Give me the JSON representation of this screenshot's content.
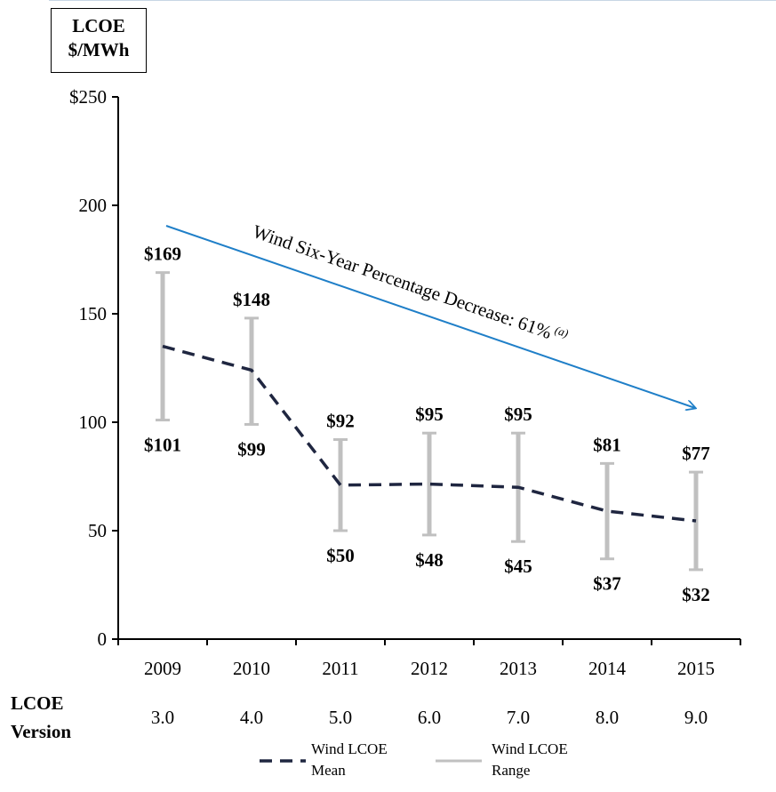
{
  "chart_data": {
    "type": "line",
    "ylabel_lines": [
      "LCOE",
      "$/MWh"
    ],
    "categories": [
      "2009",
      "2010",
      "2011",
      "2012",
      "2013",
      "2014",
      "2015"
    ],
    "ylim": [
      0,
      250
    ],
    "yticks": [
      "0",
      "50",
      "100",
      "150",
      "200",
      "$250"
    ],
    "yticks_values": [
      0,
      50,
      100,
      150,
      200,
      250
    ],
    "series": [
      {
        "name": "Wind LCOE Mean",
        "style": "dashed",
        "color": "#1f2640",
        "values": [
          135,
          124,
          71,
          71.5,
          70,
          59,
          54.5
        ]
      }
    ],
    "range": {
      "name": "Wind LCOE Range",
      "color": "#c0c0c0",
      "high": [
        169,
        148,
        92,
        95,
        95,
        81,
        77
      ],
      "low": [
        101,
        99,
        50,
        48,
        45,
        37,
        32
      ],
      "high_labels": [
        "$169",
        "$148",
        "$92",
        "$95",
        "$95",
        "$81",
        "$77"
      ],
      "low_labels": [
        "$101",
        "$99",
        "$50",
        "$48",
        "$45",
        "$37",
        "$32"
      ]
    },
    "version_label_lines": [
      "LCOE",
      "Version"
    ],
    "versions": [
      "3.0",
      "4.0",
      "5.0",
      "6.0",
      "7.0",
      "8.0",
      "9.0"
    ],
    "annotation": {
      "text": "Wind Six-Year Percentage Decrease: 61%",
      "superscript": "(a)",
      "color": "#1f7fc8"
    },
    "legend": [
      {
        "lines": [
          "Wind LCOE",
          "Mean"
        ],
        "style": "dashed",
        "color": "#1f2640"
      },
      {
        "lines": [
          "Wind LCOE",
          "Range"
        ],
        "style": "solid",
        "color": "#c0c0c0"
      }
    ],
    "grid": false,
    "legend_position": "bottom-center"
  }
}
